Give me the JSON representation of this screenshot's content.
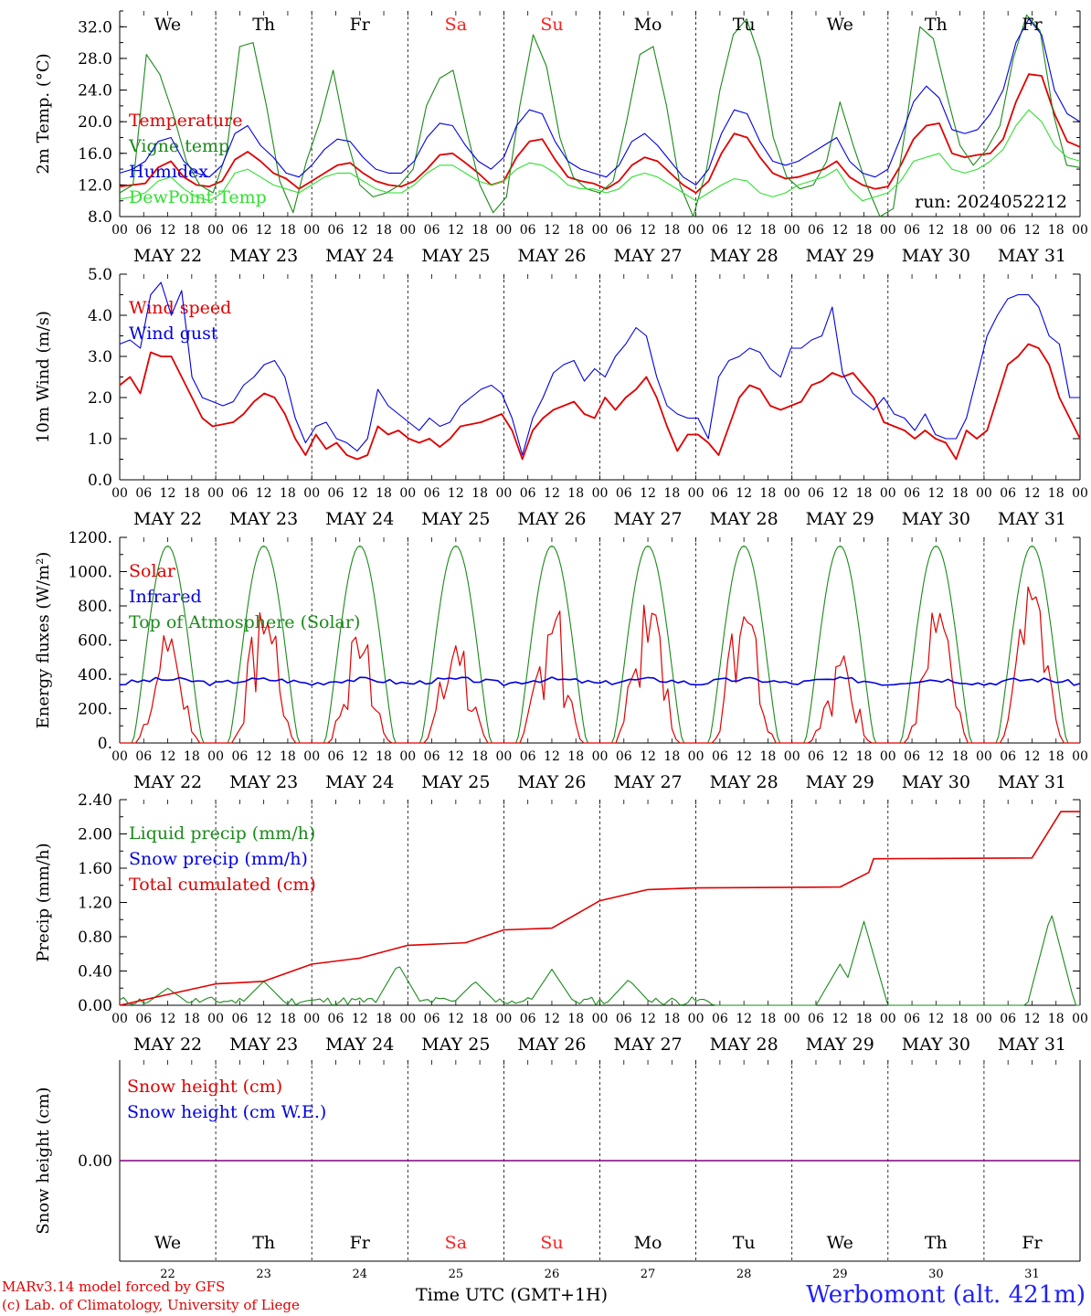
{
  "colors": {
    "red": "#e00000",
    "green": "#1a8a1a",
    "blue": "#0000e0",
    "lightgreen": "#30e030",
    "purple": "#800080",
    "redday": "#ff2020"
  },
  "day_names": [
    "We",
    "Th",
    "Fr",
    "Sa",
    "Su",
    "Mo",
    "Tu",
    "We",
    "Th",
    "Fr"
  ],
  "weekend_days": [
    3,
    4
  ],
  "date_labels": [
    "MAY 22",
    "MAY 23",
    "MAY 24",
    "MAY 25",
    "MAY 26",
    "MAY 27",
    "MAY 28",
    "MAY 29",
    "MAY 30",
    "MAY 31"
  ],
  "day_numbers": [
    "22",
    "23",
    "24",
    "25",
    "26",
    "27",
    "28",
    "29",
    "30",
    "31"
  ],
  "hour_ticks": [
    "00",
    "06",
    "12",
    "18"
  ],
  "footer": {
    "model": "MARv3.14 model forced by GFS",
    "lab": "(c) Lab. of Climatology, University of Liege",
    "xlabel": "Time UTC (GMT+1H)",
    "station": "Werbomont (alt. 421m)"
  },
  "chart_data": [
    {
      "type": "line",
      "ylabel": "2m Temp. (°C)",
      "ylim": [
        8,
        34
      ],
      "yticks": [
        "8.0",
        "12.0",
        "16.0",
        "20.0",
        "24.0",
        "28.0",
        "32.0"
      ],
      "run_label": "run: 2024052212",
      "x_unit": "hours since 00 UTC May 22 (3-hourly)",
      "series": [
        {
          "name": "Temperature",
          "color": "red",
          "values": [
            11.8,
            12.0,
            12.2,
            14.2,
            15.0,
            13.0,
            12.0,
            11.8,
            12.5,
            15.2,
            16.2,
            15.0,
            13.5,
            12.8,
            11.5,
            12.5,
            13.5,
            14.5,
            14.8,
            13.5,
            12.5,
            12.0,
            11.8,
            12.5,
            14.0,
            15.8,
            16.0,
            14.8,
            13.5,
            12.0,
            12.5,
            15.5,
            17.5,
            17.8,
            15.2,
            13.0,
            12.5,
            12.2,
            11.5,
            12.5,
            14.5,
            15.5,
            15.0,
            13.5,
            12.0,
            11.0,
            12.5,
            16.0,
            18.5,
            18.0,
            15.5,
            13.5,
            12.8,
            13.0,
            13.5,
            14.0,
            15.0,
            13.0,
            12.0,
            11.5,
            11.8,
            14.5,
            17.8,
            19.5,
            19.8,
            16.0,
            15.5,
            15.8,
            16.0,
            17.8,
            22.5,
            26.0,
            25.8,
            21.0,
            17.5,
            16.8
          ]
        },
        {
          "name": "Vigne temp",
          "color": "green",
          "values": [
            11.0,
            12.0,
            28.5,
            26.0,
            21.0,
            15.0,
            12.0,
            11.0,
            16.0,
            29.5,
            30.0,
            22.0,
            12.5,
            8.5,
            15.0,
            20.0,
            26.5,
            18.0,
            12.0,
            10.5,
            11.0,
            12.0,
            14.0,
            22.0,
            25.5,
            26.5,
            19.0,
            12.0,
            8.5,
            10.5,
            22.0,
            31.0,
            27.0,
            18.0,
            13.0,
            11.5,
            11.0,
            12.5,
            20.0,
            28.5,
            29.5,
            22.0,
            12.0,
            8.0,
            14.0,
            24.0,
            31.0,
            33.0,
            28.0,
            18.0,
            13.0,
            11.5,
            12.0,
            15.0,
            22.5,
            17.0,
            12.0,
            6.5,
            9.0,
            20.0,
            32.0,
            30.5,
            23.5,
            17.0,
            14.5,
            16.5,
            19.5,
            28.0,
            33.5,
            31.5,
            21.0,
            14.5,
            14.2
          ]
        },
        {
          "name": "Humidex",
          "color": "blue",
          "values": [
            13.5,
            14.0,
            15.0,
            17.5,
            18.0,
            15.0,
            13.5,
            13.0,
            14.5,
            18.5,
            19.5,
            17.0,
            15.5,
            13.5,
            13.0,
            14.5,
            16.5,
            17.8,
            17.5,
            15.5,
            14.0,
            13.5,
            13.5,
            15.0,
            18.0,
            19.8,
            19.5,
            17.0,
            15.0,
            14.0,
            15.5,
            19.5,
            21.5,
            21.0,
            17.5,
            15.0,
            14.0,
            13.5,
            13.0,
            14.5,
            17.5,
            18.5,
            17.0,
            15.0,
            13.0,
            12.0,
            14.0,
            18.5,
            21.5,
            21.0,
            17.5,
            15.0,
            14.5,
            15.0,
            16.0,
            17.0,
            18.0,
            15.0,
            13.5,
            13.0,
            14.0,
            18.0,
            22.5,
            24.5,
            23.0,
            19.0,
            18.5,
            19.0,
            21.0,
            24.0,
            30.0,
            33.0,
            31.0,
            24.0,
            21.0,
            20.0
          ]
        },
        {
          "name": "DewPoint Temp",
          "color": "lightgreen",
          "values": [
            10.2,
            10.5,
            11.0,
            12.5,
            13.0,
            11.5,
            10.5,
            10.0,
            11.0,
            13.5,
            14.0,
            13.0,
            12.0,
            11.5,
            11.0,
            12.0,
            13.0,
            13.5,
            13.5,
            12.5,
            11.5,
            11.0,
            11.0,
            12.0,
            13.5,
            14.5,
            14.5,
            13.5,
            12.5,
            12.0,
            12.5,
            14.0,
            14.8,
            14.5,
            13.5,
            12.0,
            11.5,
            11.5,
            11.0,
            11.5,
            13.0,
            13.5,
            13.0,
            12.0,
            11.0,
            10.0,
            11.0,
            12.0,
            12.8,
            12.5,
            11.0,
            10.5,
            11.0,
            12.0,
            12.5,
            13.0,
            14.0,
            11.5,
            10.0,
            10.5,
            11.0,
            12.5,
            15.0,
            15.5,
            16.0,
            14.0,
            13.5,
            14.0,
            15.0,
            16.5,
            19.5,
            21.5,
            20.0,
            17.0,
            15.5,
            15.0
          ]
        }
      ]
    },
    {
      "type": "line",
      "ylabel": "10m Wind (m/s)",
      "ylim": [
        0,
        5
      ],
      "yticks": [
        "0.0",
        "1.0",
        "2.0",
        "3.0",
        "4.0",
        "5.0"
      ],
      "series": [
        {
          "name": "Wind speed",
          "color": "red",
          "values": [
            2.3,
            2.5,
            2.1,
            3.1,
            3.0,
            3.0,
            2.5,
            2.0,
            1.5,
            1.3,
            1.35,
            1.4,
            1.6,
            1.9,
            2.1,
            2.0,
            1.6,
            1.0,
            0.6,
            1.1,
            0.75,
            0.9,
            0.6,
            0.5,
            0.6,
            1.3,
            1.1,
            1.2,
            1.0,
            0.9,
            1.0,
            0.8,
            1.0,
            1.3,
            1.35,
            1.4,
            1.5,
            1.6,
            1.2,
            0.5,
            1.2,
            1.5,
            1.7,
            1.8,
            1.9,
            1.6,
            1.5,
            2.0,
            1.7,
            2.0,
            2.2,
            2.5,
            2.0,
            1.3,
            0.7,
            1.1,
            1.1,
            0.9,
            0.6,
            1.3,
            2.0,
            2.3,
            2.2,
            1.8,
            1.7,
            1.8,
            1.9,
            2.3,
            2.4,
            2.6,
            2.5,
            2.6,
            2.3,
            2.0,
            1.4,
            1.3,
            1.2,
            1.0,
            1.2,
            1.0,
            0.9,
            0.5,
            1.2,
            1.0,
            1.2,
            2.0,
            2.8,
            3.0,
            3.3,
            3.2,
            2.8,
            2.0,
            1.5,
            1.0
          ]
        },
        {
          "name": "Wind gust",
          "color": "blue",
          "values": [
            3.3,
            3.4,
            3.2,
            4.5,
            4.8,
            4.0,
            4.6,
            2.5,
            2.0,
            1.9,
            1.8,
            1.9,
            2.3,
            2.5,
            2.8,
            2.9,
            2.5,
            1.5,
            0.9,
            1.3,
            1.4,
            1.0,
            0.9,
            0.7,
            1.0,
            2.2,
            1.8,
            1.6,
            1.4,
            1.2,
            1.5,
            1.3,
            1.4,
            1.8,
            2.0,
            2.2,
            2.3,
            2.1,
            1.5,
            0.6,
            1.5,
            2.0,
            2.6,
            2.8,
            2.9,
            2.4,
            2.7,
            2.5,
            3.0,
            3.3,
            3.7,
            3.5,
            2.5,
            1.8,
            1.6,
            1.5,
            1.5,
            1.0,
            2.5,
            2.9,
            3.0,
            3.2,
            3.1,
            2.7,
            2.5,
            3.2,
            3.2,
            3.4,
            3.5,
            4.2,
            2.6,
            2.1,
            1.9,
            1.7,
            2.0,
            1.6,
            1.5,
            1.2,
            1.6,
            1.1,
            1.0,
            1.0,
            1.5,
            2.5,
            3.5,
            4.0,
            4.4,
            4.5,
            4.5,
            4.2,
            3.5,
            3.3,
            2.0,
            2.0
          ]
        }
      ]
    },
    {
      "type": "line",
      "ylabel": "Energy fluxes (W/m²)",
      "ylim": [
        0,
        1200
      ],
      "yticks": [
        "0.",
        "200.",
        "400.",
        "600.",
        "800.",
        "1000.",
        "1200."
      ],
      "series": [
        {
          "name": "Solar",
          "color": "red",
          "day_peaks": [
            650,
            770,
            640,
            580,
            780,
            830,
            870,
            500,
            780,
            860
          ]
        },
        {
          "name": "Infrared",
          "color": "blue",
          "level": 345
        },
        {
          "name": "Top of Atmosphere (Solar)",
          "color": "green",
          "daily_peak": 1150
        }
      ]
    },
    {
      "type": "line",
      "ylabel": "Precip (mm/h)",
      "ylim": [
        0,
        2.4
      ],
      "yticks": [
        "0.00",
        "0.40",
        "0.80",
        "1.20",
        "1.60",
        "2.00",
        "2.40"
      ],
      "series": [
        {
          "name": "Liquid precip (mm/h)",
          "color": "green",
          "peaks": [
            [
              0.5,
              0.2
            ],
            [
              1.5,
              0.28
            ],
            [
              2.9,
              0.48
            ],
            [
              3.7,
              0.28
            ],
            [
              4.5,
              0.42
            ],
            [
              5.3,
              0.3
            ],
            [
              7.5,
              0.48
            ],
            [
              7.75,
              0.98
            ],
            [
              9.7,
              1.08
            ]
          ]
        },
        {
          "name": "Snow precip (mm/h)",
          "color": "blue",
          "values": [
            0
          ]
        },
        {
          "name": "Total cumulated (cm)",
          "color": "red",
          "cumulative": [
            [
              0,
              0
            ],
            [
              0.6,
              0.15
            ],
            [
              1,
              0.25
            ],
            [
              1.5,
              0.28
            ],
            [
              2,
              0.48
            ],
            [
              2.5,
              0.55
            ],
            [
              3,
              0.7
            ],
            [
              3.6,
              0.73
            ],
            [
              4,
              0.88
            ],
            [
              4.5,
              0.9
            ],
            [
              5,
              1.22
            ],
            [
              5.5,
              1.35
            ],
            [
              6,
              1.37
            ],
            [
              7.5,
              1.38
            ],
            [
              7.8,
              1.55
            ],
            [
              7.85,
              1.71
            ],
            [
              9.5,
              1.72
            ],
            [
              9.8,
              2.26
            ],
            [
              10,
              2.26
            ]
          ]
        }
      ]
    },
    {
      "type": "line",
      "ylabel": "Snow height (cm)",
      "yticks": [
        "0.00"
      ],
      "series": [
        {
          "name": "Snow height (cm)",
          "color": "red",
          "values": [
            0
          ]
        },
        {
          "name": "Snow height (cm W.E.)",
          "color": "blue",
          "values": [
            0
          ]
        }
      ]
    }
  ]
}
